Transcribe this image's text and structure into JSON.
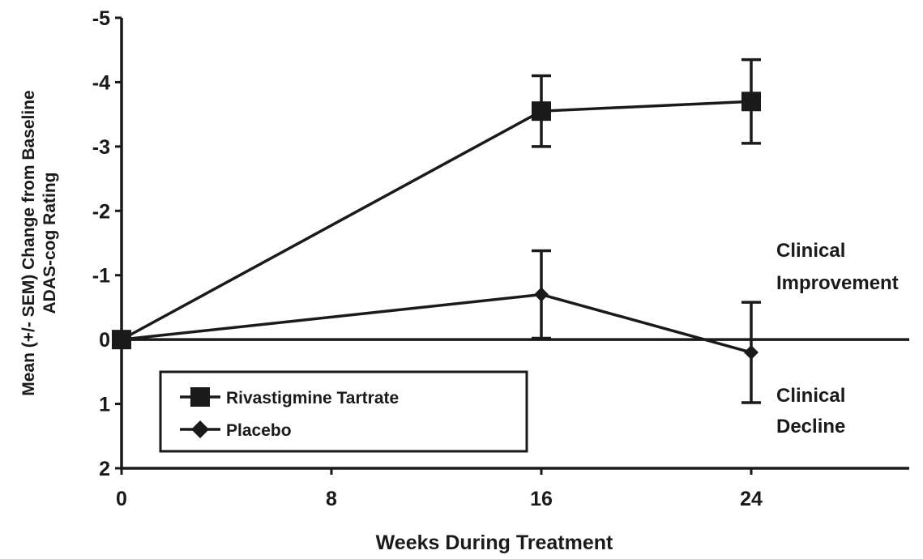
{
  "chart_data": {
    "type": "line",
    "xlabel": "Weeks During Treatment",
    "ylabel_lines": [
      "Mean (+/- SEM) Change from Baseline",
      "ADAS-cog Rating"
    ],
    "x_ticks": [
      0,
      8,
      16,
      24
    ],
    "x_tick_labels": [
      "0",
      "8",
      "16",
      "24"
    ],
    "xlim": [
      0,
      30
    ],
    "y_ticks": [
      -5,
      -4,
      -3,
      -2,
      -1,
      0,
      1,
      2
    ],
    "y_tick_labels": [
      "-5",
      "-4",
      "-3",
      "-2",
      "-1",
      "0",
      "1",
      "2"
    ],
    "ylim": [
      -5,
      2
    ],
    "y_inverted": true,
    "reference_line_y": 0,
    "grid": false,
    "legend_placement": "bottom-left",
    "series": [
      {
        "name": "Rivastigmine Tartrate",
        "marker": "square",
        "x": [
          0,
          16,
          24
        ],
        "y": [
          0,
          -3.55,
          -3.7
        ],
        "sem": [
          0,
          0.55,
          0.65
        ]
      },
      {
        "name": "Placebo",
        "marker": "diamond",
        "x": [
          0,
          16,
          24
        ],
        "y": [
          0,
          -0.7,
          0.2
        ],
        "sem": [
          0,
          0.68,
          0.78
        ]
      }
    ],
    "annotations": [
      {
        "lines": [
          "Clinical",
          "Improvement"
        ],
        "position": "right-above-zero"
      },
      {
        "lines": [
          "Clinical",
          "Decline"
        ],
        "position": "right-below-zero"
      }
    ]
  },
  "colors": {
    "line": "#1a1a1a",
    "background": "#ffffff"
  }
}
